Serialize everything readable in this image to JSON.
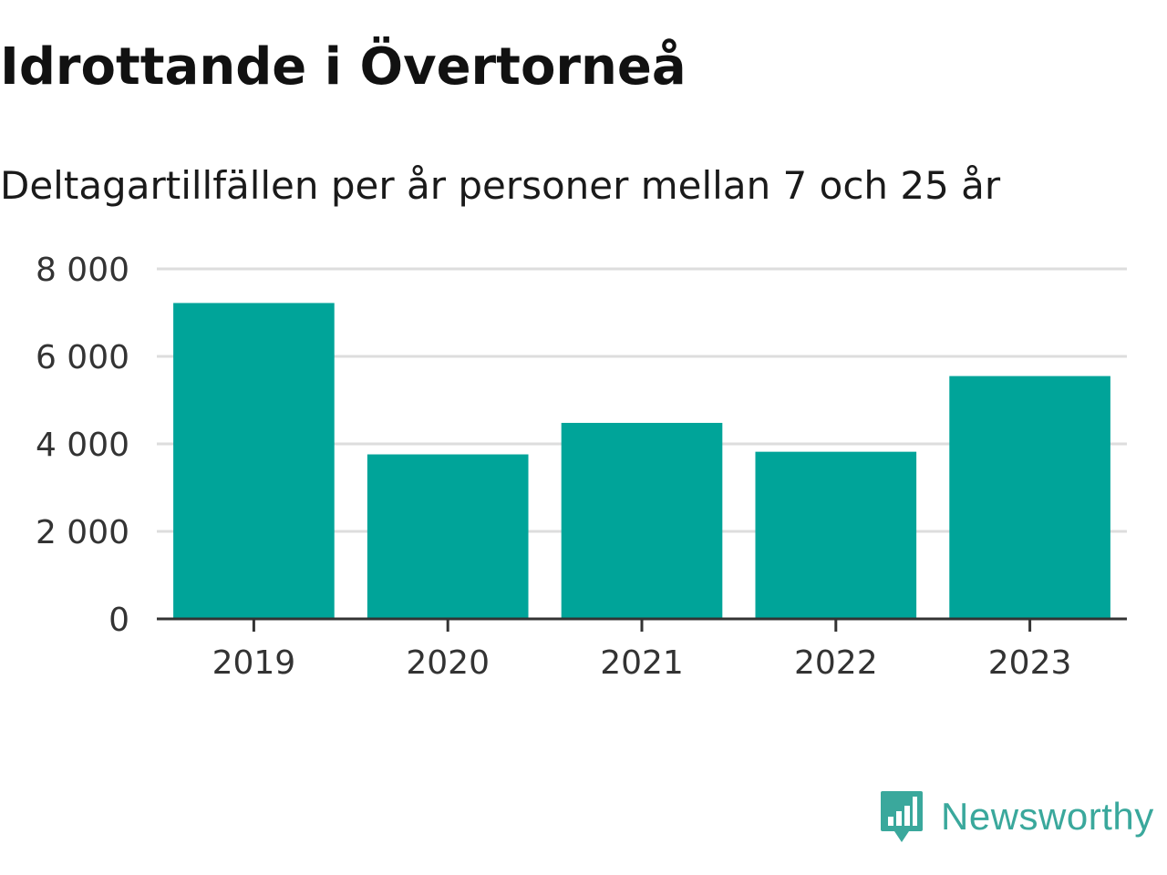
{
  "title": "Idrottande i Övertorneå",
  "subtitle": "Deltagartillfällen per år personer mellan 7 och 25 år",
  "brand": {
    "name": "Newsworthy",
    "icon": "newsworthy-logo-icon",
    "color": "#3aa89c"
  },
  "chart_data": {
    "type": "bar",
    "title": "Idrottande i Övertorneå",
    "subtitle": "Deltagartillfällen per år personer mellan 7 och 25 år",
    "xlabel": "",
    "ylabel": "",
    "categories": [
      "2019",
      "2020",
      "2021",
      "2022",
      "2023"
    ],
    "values": [
      7220,
      3760,
      4480,
      3820,
      5550
    ],
    "ylim": [
      0,
      8000
    ],
    "yticks": [
      0,
      2000,
      4000,
      6000,
      8000
    ],
    "ytick_labels": [
      "0",
      "2 000",
      "4 000",
      "6 000",
      "8 000"
    ],
    "grid": true,
    "legend": "none",
    "bar_color": "#00a499"
  }
}
